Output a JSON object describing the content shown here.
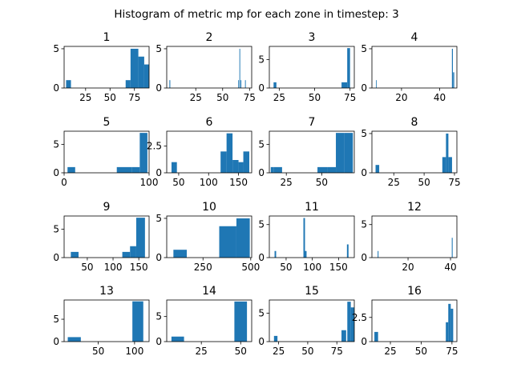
{
  "figure": {
    "title": "Histogram of metric mp for each zone in timestep: 3",
    "bar_color": "#1f77b4"
  },
  "chart_data": [
    {
      "type": "bar",
      "title": "1",
      "xlim": [
        3,
        90
      ],
      "ylim": [
        0,
        5.3
      ],
      "xticks": [
        25,
        50,
        75
      ],
      "yticks": [
        0,
        5
      ],
      "bins": [
        [
          5,
          10,
          1
        ],
        [
          66,
          71,
          1
        ],
        [
          71,
          79,
          5
        ],
        [
          79,
          85,
          4
        ],
        [
          85,
          90,
          3
        ]
      ]
    },
    {
      "type": "bar",
      "title": "2",
      "xlim": [
        -2,
        77
      ],
      "ylim": [
        0,
        5.3
      ],
      "xticks": [
        25,
        50,
        75
      ],
      "yticks": [
        0,
        5
      ],
      "bins": [
        [
          0.5,
          1.3,
          1
        ],
        [
          64.5,
          65.2,
          1
        ],
        [
          65.6,
          66.3,
          5
        ],
        [
          66.7,
          67.4,
          1
        ],
        [
          70.8,
          71.5,
          1
        ]
      ]
    },
    {
      "type": "bar",
      "title": "3",
      "xlim": [
        18,
        78
      ],
      "ylim": [
        0,
        7.3
      ],
      "xticks": [
        25,
        50,
        75
      ],
      "yticks": [
        0,
        5
      ],
      "bins": [
        [
          21,
          23,
          1
        ],
        [
          69,
          73,
          1
        ],
        [
          73,
          75,
          7
        ]
      ]
    },
    {
      "type": "bar",
      "title": "4",
      "xlim": [
        4.5,
        49
      ],
      "ylim": [
        0,
        5.3
      ],
      "xticks": [
        20,
        40
      ],
      "yticks": [
        0,
        5
      ],
      "bins": [
        [
          6.6,
          6.9,
          1
        ],
        [
          46.4,
          46.9,
          5
        ],
        [
          47,
          47.6,
          2
        ]
      ]
    },
    {
      "type": "bar",
      "title": "5",
      "xlim": [
        0,
        100
      ],
      "ylim": [
        0,
        7.3
      ],
      "xticks": [
        0,
        100
      ],
      "yticks": [
        0,
        5
      ],
      "bins": [
        [
          4,
          13,
          1
        ],
        [
          62,
          80,
          1
        ],
        [
          80,
          89,
          1
        ],
        [
          89,
          98,
          7
        ]
      ]
    },
    {
      "type": "bar",
      "title": "6",
      "xlim": [
        30,
        172
      ],
      "ylim": [
        0,
        3.9
      ],
      "xticks": [
        50,
        100,
        150
      ],
      "yticks": [
        0,
        2.5
      ],
      "bins": [
        [
          38,
          47,
          1
        ],
        [
          120,
          130,
          2
        ],
        [
          130,
          140,
          3.7
        ],
        [
          140,
          150,
          1.2
        ],
        [
          150,
          158,
          1
        ],
        [
          158,
          168,
          2
        ]
      ]
    },
    {
      "type": "bar",
      "title": "7",
      "xlim": [
        13,
        73
      ],
      "ylim": [
        0,
        7.3
      ],
      "xticks": [
        25,
        50
      ],
      "yticks": [
        0,
        5
      ],
      "bins": [
        [
          14,
          16,
          1
        ],
        [
          16,
          22,
          1
        ],
        [
          47,
          54,
          1
        ],
        [
          54,
          60,
          1
        ],
        [
          60,
          66,
          7
        ],
        [
          66,
          72,
          7
        ]
      ]
    },
    {
      "type": "bar",
      "title": "8",
      "xlim": [
        7,
        77
      ],
      "ylim": [
        0,
        5.3
      ],
      "xticks": [
        25,
        50,
        75
      ],
      "yticks": [
        0,
        5
      ],
      "bins": [
        [
          10,
          13,
          1
        ],
        [
          65,
          68,
          2
        ],
        [
          68,
          70,
          5
        ],
        [
          70,
          73,
          2
        ]
      ]
    },
    {
      "type": "bar",
      "title": "9",
      "xlim": [
        5,
        170
      ],
      "ylim": [
        0,
        7.3
      ],
      "xticks": [
        50,
        100,
        150
      ],
      "yticks": [
        0,
        5
      ],
      "bins": [
        [
          18,
          33,
          1
        ],
        [
          118,
          133,
          1
        ],
        [
          133,
          145,
          2
        ],
        [
          145,
          162,
          7
        ]
      ]
    },
    {
      "type": "bar",
      "title": "10",
      "xlim": [
        60,
        505
      ],
      "ylim": [
        0,
        5.3
      ],
      "xticks": [
        250,
        500
      ],
      "yticks": [
        0,
        5
      ],
      "bins": [
        [
          95,
          165,
          1
        ],
        [
          335,
          425,
          4
        ],
        [
          425,
          495,
          5
        ]
      ]
    },
    {
      "type": "bar",
      "title": "11",
      "xlim": [
        18,
        180
      ],
      "ylim": [
        0,
        6.3
      ],
      "xticks": [
        50,
        100,
        150
      ],
      "yticks": [
        0,
        5
      ],
      "bins": [
        [
          28,
          31,
          1
        ],
        [
          83,
          86,
          6
        ],
        [
          86,
          89,
          1
        ],
        [
          166,
          169,
          2
        ]
      ]
    },
    {
      "type": "bar",
      "title": "12",
      "xlim": [
        3,
        43
      ],
      "ylim": [
        0,
        6.3
      ],
      "xticks": [
        20,
        40
      ],
      "yticks": [
        0,
        5
      ],
      "bins": [
        [
          5.7,
          6.1,
          1
        ],
        [
          40.6,
          41,
          3
        ]
      ]
    },
    {
      "type": "bar",
      "title": "13",
      "xlim": [
        3,
        120
      ],
      "ylim": [
        0,
        9.3
      ],
      "xticks": [
        50,
        100
      ],
      "yticks": [
        0,
        5
      ],
      "bins": [
        [
          8,
          26,
          1
        ],
        [
          97,
          112,
          9
        ]
      ]
    },
    {
      "type": "bar",
      "title": "14",
      "xlim": [
        3,
        57
      ],
      "ylim": [
        0,
        8.3
      ],
      "xticks": [
        25,
        50
      ],
      "yticks": [
        0,
        5
      ],
      "bins": [
        [
          6,
          14,
          1
        ],
        [
          46,
          54,
          8
        ]
      ]
    },
    {
      "type": "bar",
      "title": "15",
      "xlim": [
        17,
        90
      ],
      "ylim": [
        0,
        7.3
      ],
      "xticks": [
        25,
        50,
        75
      ],
      "yticks": [
        0,
        5
      ],
      "bins": [
        [
          21,
          24,
          1
        ],
        [
          79,
          83,
          2
        ],
        [
          84,
          87,
          7
        ],
        [
          87,
          90,
          6
        ]
      ]
    },
    {
      "type": "bar",
      "title": "16",
      "xlim": [
        10,
        79
      ],
      "ylim": [
        0,
        4.3
      ],
      "xticks": [
        25,
        50,
        75
      ],
      "yticks": [
        0,
        2.5
      ],
      "bins": [
        [
          12,
          15,
          1
        ],
        [
          70,
          72,
          2
        ],
        [
          72,
          74,
          3.9
        ],
        [
          74,
          76,
          3.4
        ]
      ]
    }
  ]
}
